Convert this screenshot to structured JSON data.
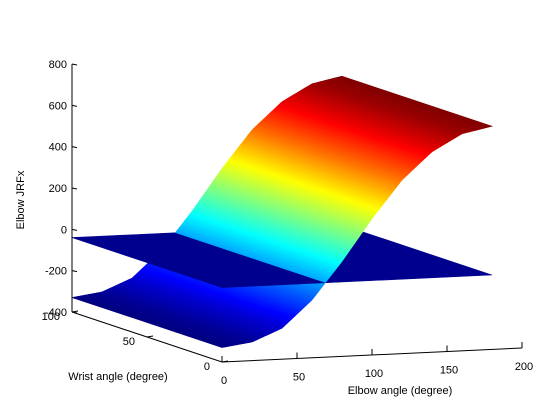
{
  "chart_data": {
    "type": "surface",
    "title": "",
    "xlabel": "Elbow angle (degree)",
    "ylabel": "Wrist angle (degree)",
    "zlabel": "Elbow JRFx",
    "xlim": [
      0,
      200
    ],
    "ylim": [
      0,
      100
    ],
    "zlim": [
      -400,
      800
    ],
    "xticks": [
      "0",
      "50",
      "100",
      "150",
      "200"
    ],
    "yticks": [
      "0",
      "50",
      "100"
    ],
    "zticks": [
      "-400",
      "-200",
      "0",
      "200",
      "400",
      "600",
      "800"
    ],
    "colormap": "jet",
    "grid": false,
    "surfaces": [
      {
        "kind": "sigmoid-surface",
        "x_range": [
          0,
          180
        ],
        "y_range": [
          0,
          100
        ],
        "z_at_x": {
          "x": [
            0,
            20,
            40,
            60,
            80,
            100,
            120,
            140,
            160,
            180
          ],
          "z": [
            -330,
            -310,
            -250,
            -120,
            60,
            260,
            440,
            570,
            650,
            680
          ]
        },
        "note_z_independent_of_y": true
      },
      {
        "kind": "plane",
        "z": -40,
        "x_range": [
          0,
          180
        ],
        "y_range": [
          0,
          100
        ],
        "color": "#00008f"
      }
    ]
  }
}
